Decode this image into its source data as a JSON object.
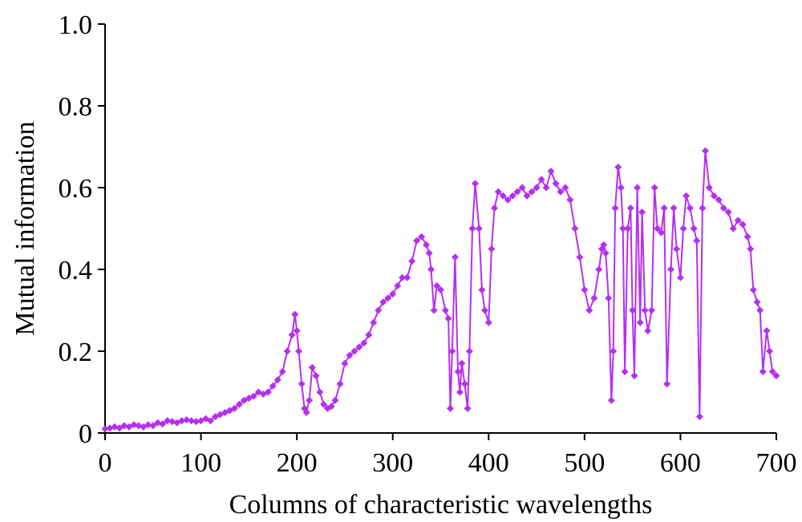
{
  "chart_data": {
    "type": "line",
    "title": "",
    "xlabel": "Columns of characteristic wavelengths",
    "ylabel": "Mutual information",
    "xlim": [
      0,
      700
    ],
    "ylim": [
      0,
      1.0
    ],
    "x_ticks": [
      0,
      100,
      200,
      300,
      400,
      500,
      600,
      700
    ],
    "y_ticks": [
      0,
      0.2,
      0.4,
      0.6,
      0.8,
      1.0
    ],
    "x_tick_labels": [
      "0",
      "100",
      "200",
      "300",
      "400",
      "500",
      "600",
      "700"
    ],
    "y_tick_labels": [
      "0",
      "0.2",
      "0.4",
      "0.6",
      "0.8",
      "1.0"
    ],
    "grid": false,
    "legend": "none",
    "series_color": "#b62ff0",
    "series": [
      {
        "x": [
          0,
          5,
          10,
          15,
          20,
          25,
          30,
          35,
          40,
          45,
          50,
          55,
          60,
          65,
          70,
          75,
          80,
          85,
          90,
          95,
          100,
          105,
          110,
          115,
          120,
          125,
          130,
          135,
          140,
          145,
          150,
          155,
          160,
          165,
          170,
          175,
          180,
          185,
          190,
          195,
          198,
          200,
          202,
          205,
          208,
          210,
          213,
          216,
          220,
          224,
          228,
          232,
          236,
          240,
          245,
          250,
          255,
          260,
          265,
          270,
          275,
          280,
          285,
          290,
          295,
          300,
          305,
          310,
          315,
          320,
          325,
          330,
          335,
          338,
          340,
          343,
          346,
          350,
          355,
          358,
          360,
          362,
          365,
          368,
          370,
          372,
          375,
          378,
          380,
          383,
          386,
          390,
          393,
          396,
          400,
          403,
          406,
          410,
          415,
          420,
          425,
          430,
          435,
          440,
          445,
          450,
          455,
          460,
          465,
          470,
          475,
          480,
          485,
          490,
          495,
          500,
          505,
          510,
          515,
          518,
          520,
          522,
          525,
          528,
          530,
          532,
          535,
          538,
          540,
          542,
          545,
          548,
          550,
          552,
          555,
          558,
          560,
          563,
          566,
          570,
          573,
          576,
          580,
          583,
          586,
          590,
          593,
          596,
          600,
          603,
          606,
          610,
          614,
          617,
          620,
          623,
          626,
          630,
          635,
          640,
          645,
          650,
          655,
          660,
          665,
          670,
          673,
          676,
          680,
          683,
          686,
          690,
          693,
          696,
          700
        ],
        "y": [
          0.01,
          0.012,
          0.015,
          0.012,
          0.018,
          0.015,
          0.02,
          0.018,
          0.015,
          0.02,
          0.018,
          0.025,
          0.022,
          0.03,
          0.028,
          0.025,
          0.03,
          0.032,
          0.03,
          0.028,
          0.03,
          0.035,
          0.03,
          0.04,
          0.045,
          0.05,
          0.055,
          0.06,
          0.07,
          0.08,
          0.085,
          0.09,
          0.1,
          0.095,
          0.1,
          0.115,
          0.13,
          0.15,
          0.2,
          0.24,
          0.29,
          0.25,
          0.2,
          0.12,
          0.06,
          0.05,
          0.08,
          0.16,
          0.14,
          0.1,
          0.07,
          0.06,
          0.065,
          0.08,
          0.12,
          0.17,
          0.19,
          0.2,
          0.21,
          0.22,
          0.24,
          0.27,
          0.3,
          0.32,
          0.33,
          0.34,
          0.36,
          0.38,
          0.38,
          0.42,
          0.47,
          0.48,
          0.46,
          0.44,
          0.4,
          0.3,
          0.36,
          0.35,
          0.3,
          0.28,
          0.06,
          0.2,
          0.43,
          0.15,
          0.1,
          0.17,
          0.12,
          0.06,
          0.2,
          0.5,
          0.61,
          0.5,
          0.35,
          0.3,
          0.27,
          0.45,
          0.55,
          0.59,
          0.58,
          0.57,
          0.58,
          0.59,
          0.6,
          0.58,
          0.59,
          0.6,
          0.62,
          0.6,
          0.64,
          0.61,
          0.59,
          0.6,
          0.57,
          0.5,
          0.43,
          0.35,
          0.3,
          0.33,
          0.4,
          0.45,
          0.46,
          0.44,
          0.33,
          0.08,
          0.2,
          0.55,
          0.65,
          0.6,
          0.5,
          0.15,
          0.5,
          0.55,
          0.3,
          0.14,
          0.6,
          0.27,
          0.54,
          0.3,
          0.25,
          0.3,
          0.6,
          0.5,
          0.49,
          0.55,
          0.12,
          0.4,
          0.55,
          0.45,
          0.38,
          0.5,
          0.58,
          0.55,
          0.5,
          0.47,
          0.04,
          0.55,
          0.69,
          0.6,
          0.58,
          0.57,
          0.55,
          0.54,
          0.5,
          0.52,
          0.51,
          0.48,
          0.45,
          0.35,
          0.32,
          0.3,
          0.15,
          0.25,
          0.2,
          0.15,
          0.14
        ]
      }
    ]
  }
}
